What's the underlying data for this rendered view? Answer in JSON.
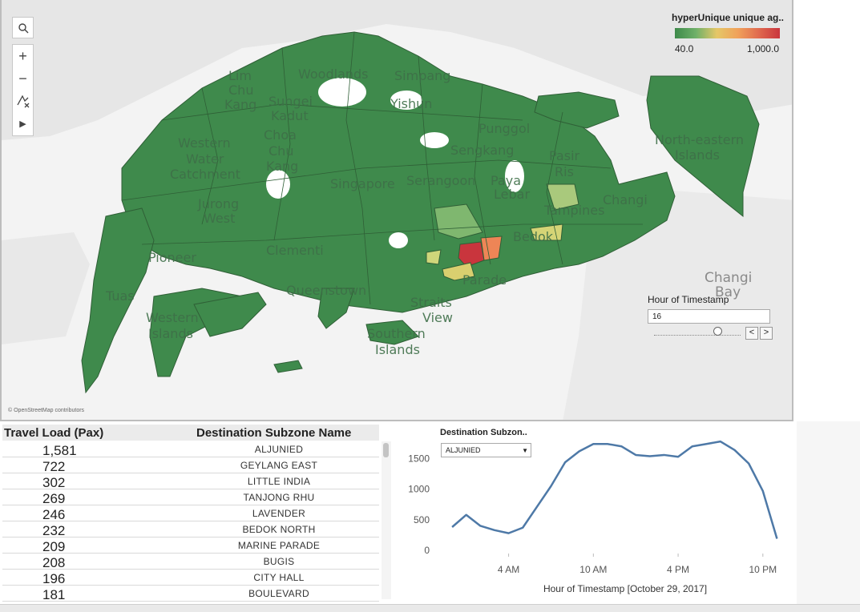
{
  "map": {
    "attribution": "© OpenStreetMap contributors",
    "controls": {
      "search_icon": "search-icon",
      "zoom_in": "+",
      "zoom_out": "−",
      "play": "▶"
    },
    "labels": [
      "Lim Chu Kang",
      "Woodlands",
      "Simpang",
      "Sungei Kadut",
      "Yishun",
      "Western Water Catchment",
      "Choa Chu Kang",
      "Sengkang",
      "Pasir Ris",
      "Punggol",
      "North-eastern Islands",
      "Singapore",
      "Serangoon",
      "Paya Lebar",
      "Tampines",
      "Changi",
      "Jurong West",
      "Pioneer",
      "Clementi",
      "Bedok",
      "Queenstown",
      "Tuas",
      "Parade",
      "Western Islands",
      "Straits View",
      "Southern Islands",
      "Changi Bay"
    ],
    "legend": {
      "title": "hyperUnique unique ag..",
      "min": "40.0",
      "max": "1,000.0"
    },
    "colors": {
      "base": "#3f8a4c",
      "water": "#ffffff",
      "land_bg": "#e4e4e4",
      "high": "#c9353d",
      "mid": "#f0874f",
      "low": "#d9cf6f"
    }
  },
  "hour_filter": {
    "label": "Hour of Timestamp",
    "value": "16",
    "prev": "<",
    "next": ">",
    "slider_fraction": 0.73
  },
  "table": {
    "headers": {
      "load": "Travel Load (Pax)",
      "name": "Destination Subzone Name"
    },
    "rows": [
      {
        "load": "1,581",
        "name": "ALJUNIED"
      },
      {
        "load": "722",
        "name": "GEYLANG EAST"
      },
      {
        "load": "302",
        "name": "LITTLE INDIA"
      },
      {
        "load": "269",
        "name": "TANJONG RHU"
      },
      {
        "load": "246",
        "name": "LAVENDER"
      },
      {
        "load": "232",
        "name": "BEDOK NORTH"
      },
      {
        "load": "209",
        "name": "MARINE PARADE"
      },
      {
        "load": "208",
        "name": "BUGIS"
      },
      {
        "load": "196",
        "name": "CITY HALL"
      },
      {
        "load": "181",
        "name": "BOULEVARD"
      }
    ]
  },
  "dest_filter": {
    "label": "Destination Subzon..",
    "value": "ALJUNIED"
  },
  "chart_data": {
    "type": "line",
    "xlabel": "Hour of Timestamp [October 29, 2017]",
    "ylabel": "",
    "x_ticks": [
      "4 AM",
      "10 AM",
      "4 PM",
      "10 PM"
    ],
    "x_tick_hours": [
      4,
      10,
      16,
      22
    ],
    "y_ticks": [
      "0",
      "500",
      "1000",
      "1500"
    ],
    "ylim": [
      0,
      1900
    ],
    "xlim": [
      -0.8,
      23.6
    ],
    "grid": false,
    "color": "#4e79a7",
    "x": [
      0,
      1,
      2,
      3,
      4,
      5,
      6,
      7,
      8,
      9,
      10,
      11,
      12,
      13,
      14,
      15,
      16,
      17,
      18,
      19,
      20,
      21,
      22,
      23
    ],
    "values": [
      380,
      580,
      400,
      330,
      280,
      370,
      710,
      1050,
      1440,
      1620,
      1740,
      1740,
      1700,
      1560,
      1540,
      1560,
      1530,
      1700,
      1740,
      1780,
      1640,
      1420,
      970,
      190
    ]
  }
}
